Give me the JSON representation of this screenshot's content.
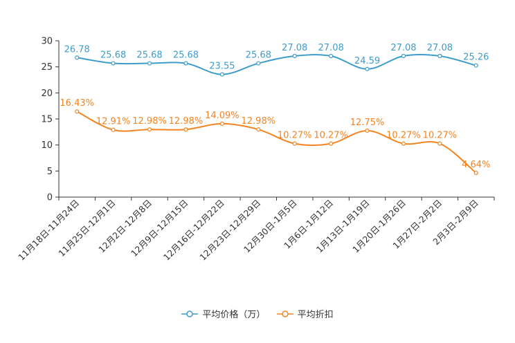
{
  "chart_data": {
    "type": "line",
    "categories": [
      "11月18日-11月24日",
      "11月25日-12月1日",
      "12月2日-12月8日",
      "12月9日-12月15日",
      "12月16日-12月22日",
      "12月23日-12月29日",
      "12月30日-1月5日",
      "1月6日-1月12日",
      "1月13日-1月19日",
      "1月20日-1月26日",
      "1月27日-2月2日",
      "2月3日-2月9日"
    ],
    "ylim": [
      0,
      30
    ],
    "yticks": [
      0,
      5,
      10,
      15,
      20,
      25,
      30
    ],
    "ytick_labels": [
      "0",
      "5",
      "10",
      "15",
      "20",
      "25",
      "30"
    ],
    "series": [
      {
        "name": "平均价格（万）",
        "color": "#3c9ccb",
        "values": [
          26.78,
          25.68,
          25.68,
          25.68,
          23.55,
          25.68,
          27.08,
          27.08,
          24.59,
          27.08,
          27.08,
          25.26
        ],
        "labels": [
          "26.78",
          "25.68",
          "25.68",
          "25.68",
          "23.55",
          "25.68",
          "27.08",
          "27.08",
          "24.59",
          "27.08",
          "27.08",
          "25.26"
        ]
      },
      {
        "name": "平均折扣",
        "color": "#f5831f",
        "values": [
          16.43,
          12.91,
          12.98,
          12.98,
          14.09,
          12.98,
          10.27,
          10.27,
          12.75,
          10.27,
          10.27,
          4.64
        ],
        "labels": [
          "16.43%",
          "12.91%",
          "12.98%",
          "12.98%",
          "14.09%",
          "12.98%",
          "10.27%",
          "10.27%",
          "12.75%",
          "10.27%",
          "10.27%",
          "4.64%"
        ]
      }
    ]
  }
}
